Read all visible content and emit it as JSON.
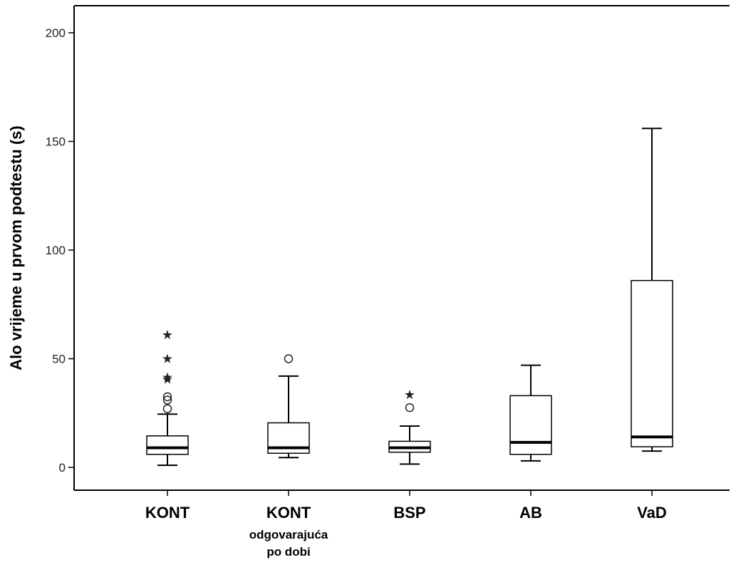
{
  "chart_data": {
    "type": "box",
    "title": "",
    "xlabel": "",
    "ylabel": "Alo vrijeme u prvom podtestu (s)",
    "ylim": [
      -10,
      212
    ],
    "yticks": [
      0,
      50,
      100,
      150,
      200
    ],
    "grid": false,
    "colors": {
      "box_fill": "#ffffff",
      "stroke": "#000000",
      "median": "#000000"
    },
    "categories": [
      {
        "label": "KONT",
        "sublabel": [
          "",
          ""
        ]
      },
      {
        "label": "KONT",
        "sublabel": [
          "odgovarajuća",
          "po dobi"
        ]
      },
      {
        "label": "BSP",
        "sublabel": [
          "",
          ""
        ]
      },
      {
        "label": "AB",
        "sublabel": [
          "",
          ""
        ]
      },
      {
        "label": "VaD",
        "sublabel": [
          "",
          ""
        ]
      }
    ],
    "boxes": [
      {
        "whisker_low": 1,
        "q1": 6,
        "median": 9,
        "q3": 14.5,
        "whisker_high": 24.5,
        "outliers_circle": [
          27,
          31,
          32.5
        ],
        "outliers_star": [
          40.5,
          41.5,
          50,
          61
        ]
      },
      {
        "whisker_low": 4.5,
        "q1": 6.5,
        "median": 9,
        "q3": 20.5,
        "whisker_high": 42,
        "outliers_circle": [
          50
        ],
        "outliers_star": []
      },
      {
        "whisker_low": 1.5,
        "q1": 7,
        "median": 9,
        "q3": 12,
        "whisker_high": 19,
        "outliers_circle": [
          27.5
        ],
        "outliers_star": [
          33.5
        ]
      },
      {
        "whisker_low": 3,
        "q1": 6,
        "median": 11.5,
        "q3": 33,
        "whisker_high": 47,
        "outliers_circle": [],
        "outliers_star": []
      },
      {
        "whisker_low": 7.5,
        "q1": 9.5,
        "median": 14,
        "q3": 86,
        "whisker_high": 156,
        "outliers_circle": [],
        "outliers_star": []
      }
    ]
  }
}
